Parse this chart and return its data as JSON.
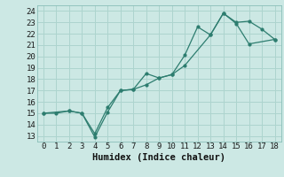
{
  "title": "",
  "xlabel": "Humidex (Indice chaleur)",
  "ylabel": "",
  "bg_color": "#cce8e4",
  "grid_color": "#add4ce",
  "line_color": "#2d7d6f",
  "xlim": [
    -0.5,
    18.5
  ],
  "ylim": [
    12.5,
    24.5
  ],
  "xticks": [
    0,
    1,
    2,
    3,
    4,
    5,
    6,
    7,
    8,
    9,
    10,
    11,
    12,
    13,
    14,
    15,
    16,
    17,
    18
  ],
  "yticks": [
    13,
    14,
    15,
    16,
    17,
    18,
    19,
    20,
    21,
    22,
    23,
    24
  ],
  "line1_x": [
    0,
    1,
    2,
    3,
    4,
    5,
    6,
    7,
    8,
    9,
    10,
    11,
    12,
    13,
    14,
    15,
    16,
    17,
    18
  ],
  "line1_y": [
    15.0,
    15.0,
    15.2,
    15.0,
    12.9,
    15.1,
    17.0,
    17.1,
    18.5,
    18.1,
    18.4,
    20.1,
    22.6,
    21.9,
    23.8,
    23.0,
    23.1,
    22.4,
    21.5
  ],
  "line2_x": [
    0,
    2,
    3,
    4,
    5,
    6,
    7,
    8,
    9,
    10,
    11,
    13,
    14,
    15,
    16,
    18
  ],
  "line2_y": [
    15.0,
    15.2,
    15.0,
    13.2,
    15.5,
    17.0,
    17.1,
    17.5,
    18.1,
    18.4,
    19.2,
    21.9,
    23.8,
    22.9,
    21.1,
    21.5
  ],
  "tick_fontsize": 6.5,
  "xlabel_fontsize": 7.5
}
